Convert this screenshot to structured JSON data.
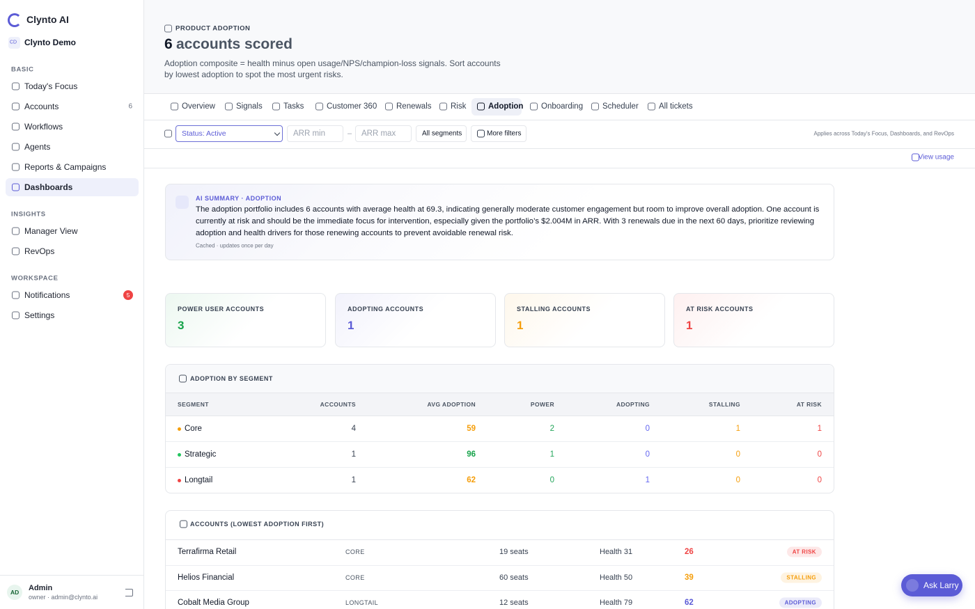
{
  "sidebar": {
    "brand": "Clynto AI",
    "workspace": {
      "initials": "CD",
      "name": "Clynto Demo"
    },
    "sections": [
      {
        "title": "BASIC",
        "items": [
          {
            "label": "Today's Focus"
          },
          {
            "label": "Accounts",
            "count": 6
          },
          {
            "label": "Workflows"
          },
          {
            "label": "Agents"
          },
          {
            "label": "Reports & Campaigns"
          },
          {
            "label": "Dashboards",
            "active": true
          }
        ]
      },
      {
        "title": "INSIGHTS",
        "items": [
          {
            "label": "Manager View"
          },
          {
            "label": "RevOps"
          }
        ]
      },
      {
        "title": "WORKSPACE",
        "items": [
          {
            "label": "Notifications",
            "badge": 5
          },
          {
            "label": "Settings"
          }
        ]
      }
    ],
    "user": {
      "initials": "AD",
      "name": "Admin",
      "detail": "owner · admin@clynto.ai"
    }
  },
  "header": {
    "eyebrow": "PRODUCT ADOPTION",
    "count": 6,
    "title_suffix": "accounts scored",
    "description": "Adoption composite = health minus open usage/NPS/champion-loss signals. Sort accounts by lowest adoption to spot the most urgent risks."
  },
  "tabs": [
    {
      "label": "Overview"
    },
    {
      "label": "Signals"
    },
    {
      "label": "Tasks"
    },
    {
      "label": "Customer 360"
    },
    {
      "label": "Renewals"
    },
    {
      "label": "Risk"
    },
    {
      "label": "Adoption",
      "active": true
    },
    {
      "label": "Onboarding"
    },
    {
      "label": "Scheduler"
    },
    {
      "label": "All tickets"
    }
  ],
  "filters": {
    "status": "Status: Active",
    "arr_min": "ARR min",
    "separator": "–",
    "arr_max": "ARR max",
    "segments": "All segments",
    "more": "More filters",
    "note": "Applies across Today's Focus, Dashboards, and RevOps"
  },
  "view_usage": "View usage",
  "ai_summary": {
    "label": "AI SUMMARY · ADOPTION",
    "text": "The adoption portfolio includes 6 accounts with average health at 69.3, indicating generally moderate customer engagement but room to improve overall adoption. One account is currently at risk and should be the immediate focus for intervention, especially given the portfolio’s $2.004M in ARR. With 3 renewals due in the next 60 days, prioritize reviewing adoption and health drivers for those renewing accounts to prevent avoidable renewal risk.",
    "footnote": "Cached · updates once per day"
  },
  "kpis": [
    {
      "label": "POWER USER ACCOUNTS",
      "value": 3,
      "color": "#16a34a"
    },
    {
      "label": "ADOPTING ACCOUNTS",
      "value": 1,
      "color": "#5b5bd6"
    },
    {
      "label": "STALLING ACCOUNTS",
      "value": 1,
      "color": "#f59e0b"
    },
    {
      "label": "AT RISK ACCOUNTS",
      "value": 1,
      "color": "#ef4444"
    }
  ],
  "segment_table": {
    "title": "ADOPTION BY SEGMENT",
    "columns": [
      "SEGMENT",
      "ACCOUNTS",
      "AVG ADOPTION",
      "POWER",
      "ADOPTING",
      "STALLING",
      "AT RISK"
    ],
    "rows": [
      {
        "segment": "Core",
        "dot_color": "#f59e0b",
        "accounts": 4,
        "avg_adoption": 59,
        "avg_color": "#f59e0b",
        "power": 2,
        "adopting": 0,
        "stalling": 1,
        "at_risk": 1
      },
      {
        "segment": "Strategic",
        "dot_color": "#22c55e",
        "accounts": 1,
        "avg_adoption": 96,
        "avg_color": "#16a34a",
        "power": 1,
        "adopting": 0,
        "stalling": 0,
        "at_risk": 0
      },
      {
        "segment": "Longtail",
        "dot_color": "#ef4444",
        "accounts": 1,
        "avg_adoption": 62,
        "avg_color": "#f59e0b",
        "power": 0,
        "adopting": 1,
        "stalling": 0,
        "at_risk": 0
      }
    ]
  },
  "accounts_table": {
    "title": "ACCOUNTS (LOWEST ADOPTION FIRST)",
    "rows": [
      {
        "name": "Terrafirma Retail",
        "segment": "CORE",
        "seats": "19 seats",
        "health": "Health 31",
        "adoption": 26,
        "status": "AT RISK",
        "color": "#ef4444"
      },
      {
        "name": "Helios Financial",
        "segment": "CORE",
        "seats": "60 seats",
        "health": "Health 50",
        "adoption": 39,
        "status": "STALLING",
        "color": "#f59e0b"
      },
      {
        "name": "Cobalt Media Group",
        "segment": "LONGTAIL",
        "seats": "12 seats",
        "health": "Health 79",
        "adoption": 62,
        "status": "ADOPTING",
        "color": "#5b5bd6"
      }
    ]
  },
  "ask_button": "Ask Larry"
}
